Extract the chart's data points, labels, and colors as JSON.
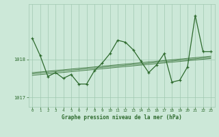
{
  "x": [
    0,
    1,
    2,
    3,
    4,
    5,
    6,
    7,
    8,
    9,
    10,
    11,
    12,
    13,
    14,
    15,
    16,
    17,
    18,
    19,
    20,
    21,
    22,
    23
  ],
  "y_vals": [
    1018.55,
    1018.1,
    1017.55,
    1017.65,
    1017.5,
    1017.6,
    1017.35,
    1017.35,
    1017.7,
    1017.9,
    1018.15,
    1018.5,
    1018.45,
    1018.25,
    1017.95,
    1017.65,
    1017.85,
    1018.15,
    1017.4,
    1017.45,
    1017.8,
    1019.15,
    1018.2,
    1018.2
  ],
  "trend_lines": [
    [
      1017.62,
      1018.05
    ],
    [
      1017.65,
      1018.08
    ],
    [
      1017.58,
      1018.02
    ]
  ],
  "xlim": [
    -0.5,
    23.5
  ],
  "ylim": [
    1016.75,
    1019.45
  ],
  "yticks": [
    1017.0,
    1018.0
  ],
  "xticks": [
    0,
    1,
    2,
    3,
    4,
    5,
    6,
    7,
    8,
    9,
    10,
    11,
    12,
    13,
    14,
    15,
    16,
    17,
    18,
    19,
    20,
    21,
    22,
    23
  ],
  "xlabel": "Graphe pression niveau de la mer (hPa)",
  "line_color": "#2d6a2d",
  "bg_color": "#cce8d8",
  "grid_color_major": "#a0c8b0",
  "grid_color_minor": "#b8d8c8"
}
